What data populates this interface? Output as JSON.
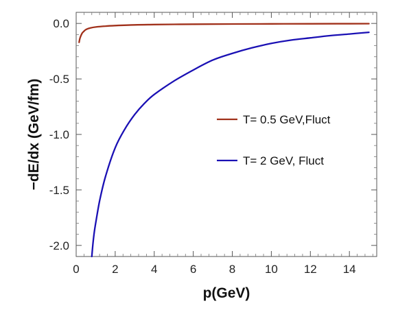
{
  "chart_data": {
    "type": "line",
    "xlabel": "p(GeV)",
    "ylabel": "−dE/dx (GeV/fm)",
    "xlim": [
      0,
      15.4
    ],
    "ylim": [
      -2.1,
      0.1
    ],
    "xticks": [
      {
        "value": 0,
        "label": "0"
      },
      {
        "value": 2,
        "label": "2"
      },
      {
        "value": 4,
        "label": "4"
      },
      {
        "value": 6,
        "label": "6"
      },
      {
        "value": 8,
        "label": "8"
      },
      {
        "value": 10,
        "label": "10"
      },
      {
        "value": 12,
        "label": "12"
      },
      {
        "value": 14,
        "label": "14"
      }
    ],
    "yticks": [
      {
        "value": 0.0,
        "label": "0.0"
      },
      {
        "value": -0.5,
        "label": "-0.5"
      },
      {
        "value": -1.0,
        "label": "-1.0"
      },
      {
        "value": -1.5,
        "label": "-1.5"
      },
      {
        "value": -2.0,
        "label": "-2.0"
      }
    ],
    "grid": false,
    "legend_position": "center-right",
    "series": [
      {
        "name": "T= 0.5 GeV,Fluct",
        "color": "#a0301a",
        "x": [
          0.15,
          0.2,
          0.3,
          0.4,
          0.5,
          0.7,
          1.0,
          1.5,
          2.0,
          3.0,
          4.0,
          6.0,
          8.0,
          10.0,
          12.0,
          15.0
        ],
        "y": [
          -0.17,
          -0.13,
          -0.09,
          -0.07,
          -0.055,
          -0.042,
          -0.032,
          -0.024,
          -0.019,
          -0.013,
          -0.01,
          -0.007,
          -0.005,
          -0.004,
          -0.003,
          -0.002
        ]
      },
      {
        "name": "T= 2 GeV, Fluct",
        "color": "#1a10b4",
        "x": [
          0.8,
          0.9,
          1.0,
          1.2,
          1.5,
          2.0,
          2.5,
          3.0,
          3.5,
          4.0,
          5.0,
          6.0,
          7.0,
          8.0,
          9.0,
          10.0,
          11.0,
          12.0,
          13.0,
          14.0,
          15.0
        ],
        "y": [
          -2.1,
          -1.92,
          -1.8,
          -1.6,
          -1.38,
          -1.12,
          -0.95,
          -0.82,
          -0.72,
          -0.64,
          -0.52,
          -0.42,
          -0.33,
          -0.27,
          -0.22,
          -0.18,
          -0.15,
          -0.13,
          -0.11,
          -0.095,
          -0.08
        ]
      }
    ]
  }
}
